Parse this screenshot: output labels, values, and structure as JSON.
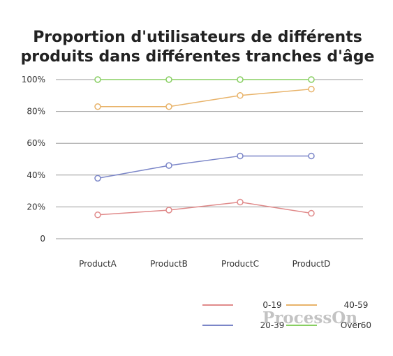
{
  "chart_data": {
    "type": "line",
    "title_lines": [
      "Proportion d'utilisateurs de différents",
      "produits dans différentes tranches d'âge"
    ],
    "categories": [
      "ProductA",
      "ProductB",
      "ProductC",
      "ProductD"
    ],
    "y_ticks": [
      {
        "value": 0,
        "label": "0"
      },
      {
        "value": 20,
        "label": "20%"
      },
      {
        "value": 40,
        "label": "40%"
      },
      {
        "value": 60,
        "label": "60%"
      },
      {
        "value": 80,
        "label": "80%"
      },
      {
        "value": 100,
        "label": "100%"
      }
    ],
    "ylim": [
      0,
      100
    ],
    "grid": true,
    "legend_position": "bottom-right",
    "series": [
      {
        "name": "0-19",
        "color": "#e08a8a",
        "values": [
          15,
          18,
          23,
          16
        ]
      },
      {
        "name": "20-39",
        "color": "#7b86c8",
        "values": [
          38,
          46,
          52,
          52
        ]
      },
      {
        "name": "40-59",
        "color": "#e8b36a",
        "values": [
          83,
          83,
          90,
          94
        ]
      },
      {
        "name": "Over60",
        "color": "#88cf62",
        "values": [
          100,
          100,
          100,
          100
        ]
      }
    ]
  },
  "watermark": {
    "text": "ProcessOn"
  }
}
